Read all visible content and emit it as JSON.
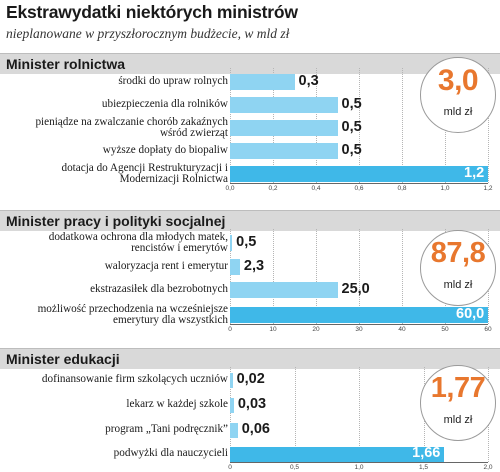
{
  "title": "Ekstrawydatki niektórych ministrów",
  "subtitle": "nieplanowane w przyszłorocznym budżecie, w mld zł",
  "colors": {
    "bar": "#8fd4f2",
    "bar_highlight": "#3fb8e8",
    "total": "#e8772e",
    "header_bg": "#d9d9d9"
  },
  "chart_data": [
    {
      "type": "bar",
      "orientation": "horizontal",
      "title": "Minister rolnictwa",
      "total": "3,0",
      "total_unit": "mld zł",
      "categories": [
        "środki do upraw rolnych",
        "ubiezpieczenia dla rolników",
        "pieniądze na zwalczanie chorób zakaźnych wśród zwierząt",
        "wyższe dopłaty do biopaliw",
        "dotacja do Agencji Restrukturyzacji i Modernizacji Rolnictwa"
      ],
      "values": [
        0.3,
        0.5,
        0.5,
        0.5,
        1.2
      ],
      "value_labels": [
        "0,3",
        "0,5",
        "0,5",
        "0,5",
        "1,2"
      ],
      "xlim": [
        0,
        1.2
      ],
      "ticks": [
        0,
        0.2,
        0.4,
        0.6,
        0.8,
        1.0,
        1.2
      ],
      "tick_labels": [
        "0,0",
        "0,2",
        "0,4",
        "0,6",
        "0,8",
        "1,0",
        "1,2"
      ]
    },
    {
      "type": "bar",
      "orientation": "horizontal",
      "title": "Minister pracy i polityki socjalnej",
      "total": "87,8",
      "total_unit": "mld zł",
      "categories": [
        "dodatkowa ochrona dla młodych matek, rencistów i emerytów",
        "waloryzacja rent i emerytur",
        "ekstrazasiłek dla bezrobotnych",
        "możliwość przechodzenia na wcześniejsze emerytury dla wszystkich"
      ],
      "values": [
        0.5,
        2.3,
        25.0,
        60.0
      ],
      "value_labels": [
        "0,5",
        "2,3",
        "25,0",
        "60,0"
      ],
      "xlim": [
        0,
        60
      ],
      "ticks": [
        0,
        10,
        20,
        30,
        40,
        50,
        60
      ],
      "tick_labels": [
        "0",
        "10",
        "20",
        "30",
        "40",
        "50",
        "60"
      ]
    },
    {
      "type": "bar",
      "orientation": "horizontal",
      "title": "Minister edukacji",
      "total": "1,77",
      "total_unit": "mld zł",
      "categories": [
        "dofinansowanie firm szkolących uczniów",
        "lekarz w każdej szkole",
        "program „Tani podręcznik”",
        "podwyżki dla nauczycieli"
      ],
      "values": [
        0.02,
        0.03,
        0.06,
        1.66
      ],
      "value_labels": [
        "0,02",
        "0,03",
        "0,06",
        "1,66"
      ],
      "xlim": [
        0,
        2.0
      ],
      "ticks": [
        0,
        0.5,
        1.0,
        1.5,
        2.0
      ],
      "tick_labels": [
        "0",
        "0,5",
        "1,0",
        "1,5",
        "2,0"
      ]
    }
  ]
}
